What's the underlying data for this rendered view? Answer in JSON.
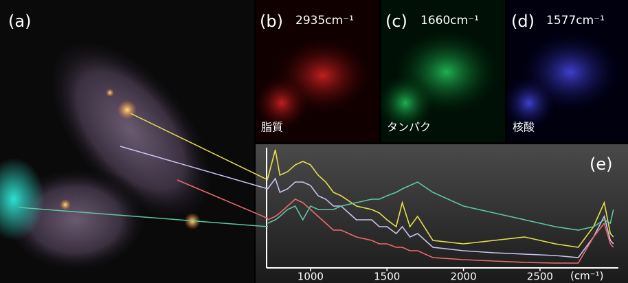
{
  "panels": [
    {
      "label": "(a)"
    },
    {
      "label": "(b)",
      "wavenumber": "2935cm⁻¹",
      "caption": "脂質"
    },
    {
      "label": "(c)",
      "wavenumber": "1660cm⁻¹",
      "caption": "タンパク"
    },
    {
      "label": "(d)",
      "wavenumber": "1577cm⁻¹",
      "caption": "核酸"
    }
  ],
  "chart_data": {
    "type": "line",
    "label": "(e)",
    "xlabel": "(cm⁻¹)",
    "x": [
      720,
      770,
      800,
      850,
      900,
      950,
      1000,
      1050,
      1100,
      1150,
      1200,
      1300,
      1400,
      1450,
      1500,
      1560,
      1600,
      1650,
      1700,
      1800,
      2000,
      2200,
      2400,
      2600,
      2750,
      2850,
      2920,
      2960,
      2980
    ],
    "series": [
      {
        "color": "#e8e04a",
        "values": [
          130,
          172,
          135,
          140,
          150,
          155,
          150,
          135,
          125,
          110,
          105,
          90,
          85,
          80,
          70,
          60,
          95,
          60,
          75,
          40,
          35,
          40,
          45,
          35,
          30,
          60,
          95,
          50,
          45
        ]
      },
      {
        "color": "#c8c4f0",
        "values": [
          115,
          130,
          110,
          115,
          125,
          125,
          120,
          105,
          100,
          90,
          90,
          70,
          70,
          60,
          60,
          50,
          60,
          45,
          50,
          30,
          25,
          22,
          20,
          18,
          15,
          45,
          75,
          40,
          35
        ]
      },
      {
        "color": "#f06a6a",
        "values": [
          70,
          75,
          80,
          90,
          100,
          95,
          85,
          75,
          65,
          55,
          55,
          45,
          40,
          35,
          35,
          30,
          30,
          25,
          25,
          15,
          12,
          10,
          8,
          7,
          7,
          45,
          65,
          35,
          30
        ]
      },
      {
        "color": "#5ec8a0",
        "values": [
          65,
          70,
          75,
          85,
          90,
          70,
          90,
          85,
          85,
          85,
          90,
          95,
          100,
          100,
          105,
          110,
          115,
          120,
          125,
          110,
          90,
          80,
          70,
          60,
          55,
          60,
          70,
          65,
          85
        ]
      }
    ],
    "xlim": [
      713,
      2990
    ],
    "ylim": [
      0,
      180
    ],
    "xticks": [
      1000,
      1500,
      2000,
      2500
    ]
  }
}
